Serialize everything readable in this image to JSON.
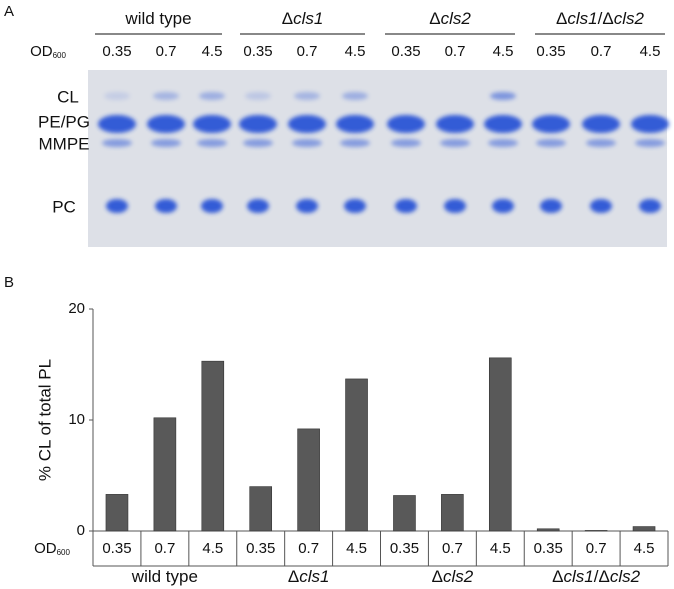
{
  "panel_a": {
    "label": "A",
    "groups": [
      "wild type",
      "Δcls1",
      "Δcls2",
      "Δcls1/Δcls2"
    ],
    "od_label": "OD",
    "od_subscript": "600",
    "od_values": [
      "0.35",
      "0.7",
      "4.5",
      "0.35",
      "0.7",
      "4.5",
      "0.35",
      "0.7",
      "4.5",
      "0.35",
      "0.7",
      "4.5"
    ],
    "bands": [
      "CL",
      "PE/PG",
      "MMPE",
      "PC"
    ]
  },
  "chart_data": {
    "type": "bar",
    "panel_label": "B",
    "ylabel": "% CL of total PL",
    "xlabel": "OD",
    "xlabel_subscript": "600",
    "categories": [
      "0.35",
      "0.7",
      "4.5",
      "0.35",
      "0.7",
      "4.5",
      "0.35",
      "0.7",
      "4.5",
      "0.35",
      "0.7",
      "4.5"
    ],
    "groups": [
      "wild type",
      "Δcls1",
      "Δcls2",
      "Δcls1/Δcls2"
    ],
    "values": [
      3.3,
      10.2,
      15.3,
      4.0,
      9.2,
      13.7,
      3.2,
      3.3,
      15.6,
      0.2,
      0.05,
      0.4
    ],
    "color": "#595959",
    "ylim": [
      0,
      20
    ],
    "yticks": [
      0,
      10,
      20
    ]
  }
}
